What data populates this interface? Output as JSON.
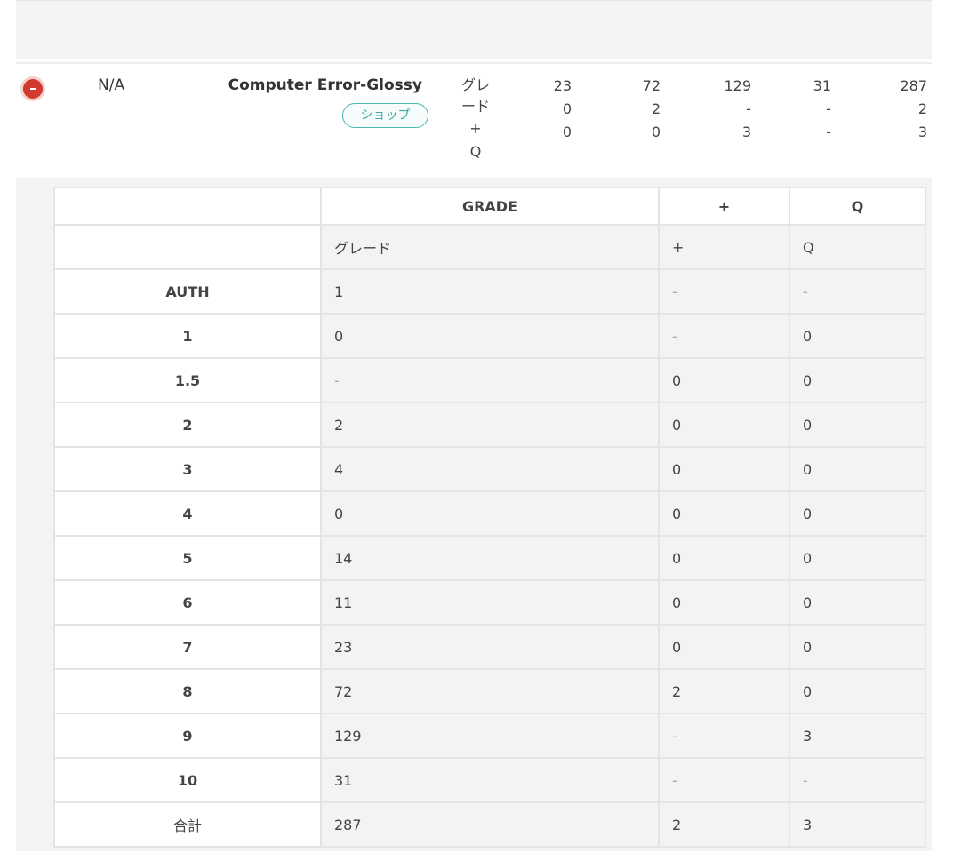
{
  "item": {
    "status_icon": "red-circle-icon",
    "status_color": "#d13a2e",
    "grade_label": "N/A",
    "title": "Computer Error-Glossy",
    "shop_label": "ショップ",
    "row_labels": [
      "グレード",
      "+",
      "Q"
    ],
    "summary_columns": [
      [
        "23",
        "0",
        "0"
      ],
      [
        "72",
        "2",
        "0"
      ],
      [
        "129",
        "-",
        "3"
      ],
      [
        "31",
        "-",
        "-"
      ],
      [
        "287",
        "2",
        "3"
      ]
    ]
  },
  "table": {
    "headers": [
      "",
      "GRADE",
      "+",
      "Q"
    ],
    "subheaders": [
      "",
      "グレード",
      "+",
      "Q"
    ],
    "rows": [
      [
        "AUTH",
        "1",
        "-",
        "-"
      ],
      [
        "1",
        "0",
        "-",
        "0"
      ],
      [
        "1.5",
        "-",
        "0",
        "0"
      ],
      [
        "2",
        "2",
        "0",
        "0"
      ],
      [
        "3",
        "4",
        "0",
        "0"
      ],
      [
        "4",
        "0",
        "0",
        "0"
      ],
      [
        "5",
        "14",
        "0",
        "0"
      ],
      [
        "6",
        "11",
        "0",
        "0"
      ],
      [
        "7",
        "23",
        "0",
        "0"
      ],
      [
        "8",
        "72",
        "2",
        "0"
      ],
      [
        "9",
        "129",
        "-",
        "3"
      ],
      [
        "10",
        "31",
        "-",
        "-"
      ],
      [
        "合計",
        "287",
        "2",
        "3"
      ]
    ]
  }
}
